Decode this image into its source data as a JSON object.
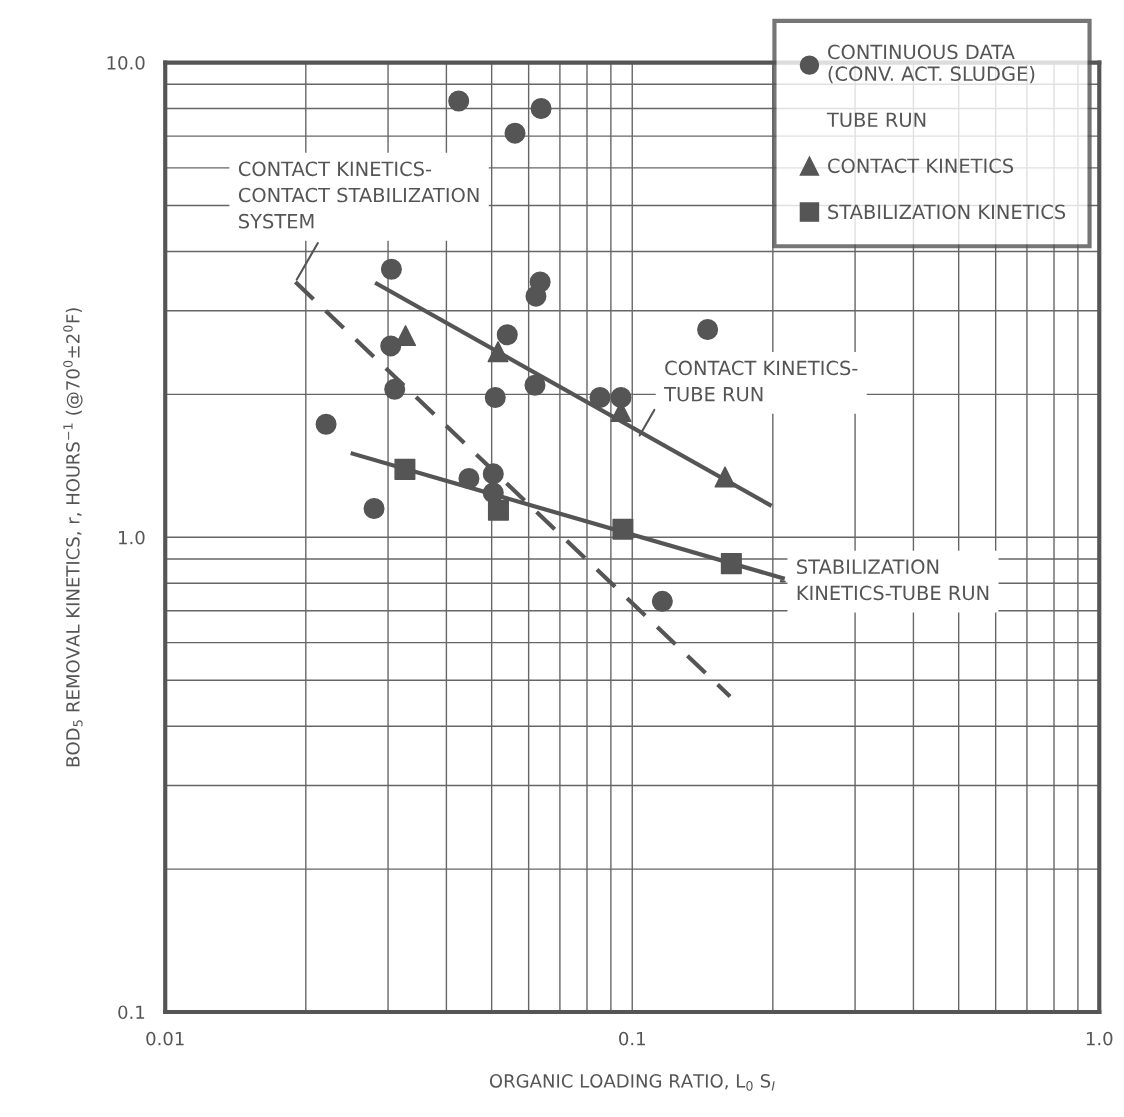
{
  "chart_data": {
    "type": "scatter",
    "xlabel": "ORGANIC LOADING RATIO, L$_{0}$ S$_{I}$",
    "ylabel": "BOD$_{5}$ REMOVAL KINETICS, r, HOURS$^{−1}$ (@70$^{0}$±2$^{0}$F)",
    "log": "xy",
    "xlim": [
      0.01,
      1
    ],
    "ylim": [
      0.1,
      10
    ],
    "xticks": [
      0.01,
      0.1,
      {
        "value": 1,
        "label": "1.0"
      }
    ],
    "yticks": [
      0.1,
      {
        "value": 1,
        "label": "1.0"
      },
      {
        "value": 10,
        "label": "10.0"
      }
    ],
    "grid": true,
    "legend": "top right",
    "legend_title": "TUBE RUN",
    "series": [
      {
        "name": "CONTINUOUS DATA\n(CONV. ACT. SLUDGE)",
        "marker": "circle",
        "color": "#555555",
        "x": [
          0.0425,
          0.0638,
          0.0561,
          0.0305,
          0.0635,
          0.0622,
          0.054,
          0.0304,
          0.031,
          0.0509,
          0.0619,
          0.0853,
          0.0946,
          0.0221,
          0.028,
          0.0447,
          0.0504,
          0.0504,
          0.145,
          0.116
        ],
        "values": [
          8.3,
          8.0,
          7.1,
          3.67,
          3.45,
          3.22,
          2.67,
          2.53,
          2.05,
          1.97,
          2.09,
          1.97,
          1.97,
          1.73,
          1.15,
          1.33,
          1.36,
          1.24,
          2.74,
          0.733
        ]
      },
      {
        "name": "CONTACT KINETICS",
        "marker": "triangle",
        "color": "#555555",
        "x": [
          0.0327,
          0.0516,
          0.0946,
          0.158
        ],
        "values": [
          2.66,
          2.46,
          1.84,
          1.34
        ]
      },
      {
        "name": "STABILIZATION KINETICS",
        "marker": "square",
        "color": "#555555",
        "x": [
          0.0326,
          0.0517,
          0.0955,
          0.163
        ],
        "values": [
          1.39,
          1.14,
          1.04,
          0.88
        ]
      },
      {
        "type": "line",
        "line_style": "solid",
        "color": "#555555",
        "x": [
          0.0284,
          0.197
        ],
        "values": [
          3.42,
          1.17
        ]
      },
      {
        "type": "line",
        "line_style": "solid",
        "color": "#555555",
        "x": [
          0.0252,
          0.21
        ],
        "values": [
          1.5,
          0.82
        ]
      },
      {
        "type": "line",
        "line_style": "dashed",
        "color": "#555555",
        "x": [
          0.019,
          0.162
        ],
        "values": [
          3.45,
          0.462
        ]
      }
    ],
    "annotations": [
      {
        "text": "CONTACT KINETICS-\nCONTACT STABILIZATION\nSYSTEM",
        "x": 0.019,
        "y": 3.45
      },
      {
        "text": "CONTACT KINETICS-\nTUBE RUN",
        "x": 0.103,
        "y": 1.62
      },
      {
        "text": "STABILIZATION\nKINETICS-TUBE RUN",
        "x": 0.21,
        "y": 0.82
      }
    ]
  }
}
